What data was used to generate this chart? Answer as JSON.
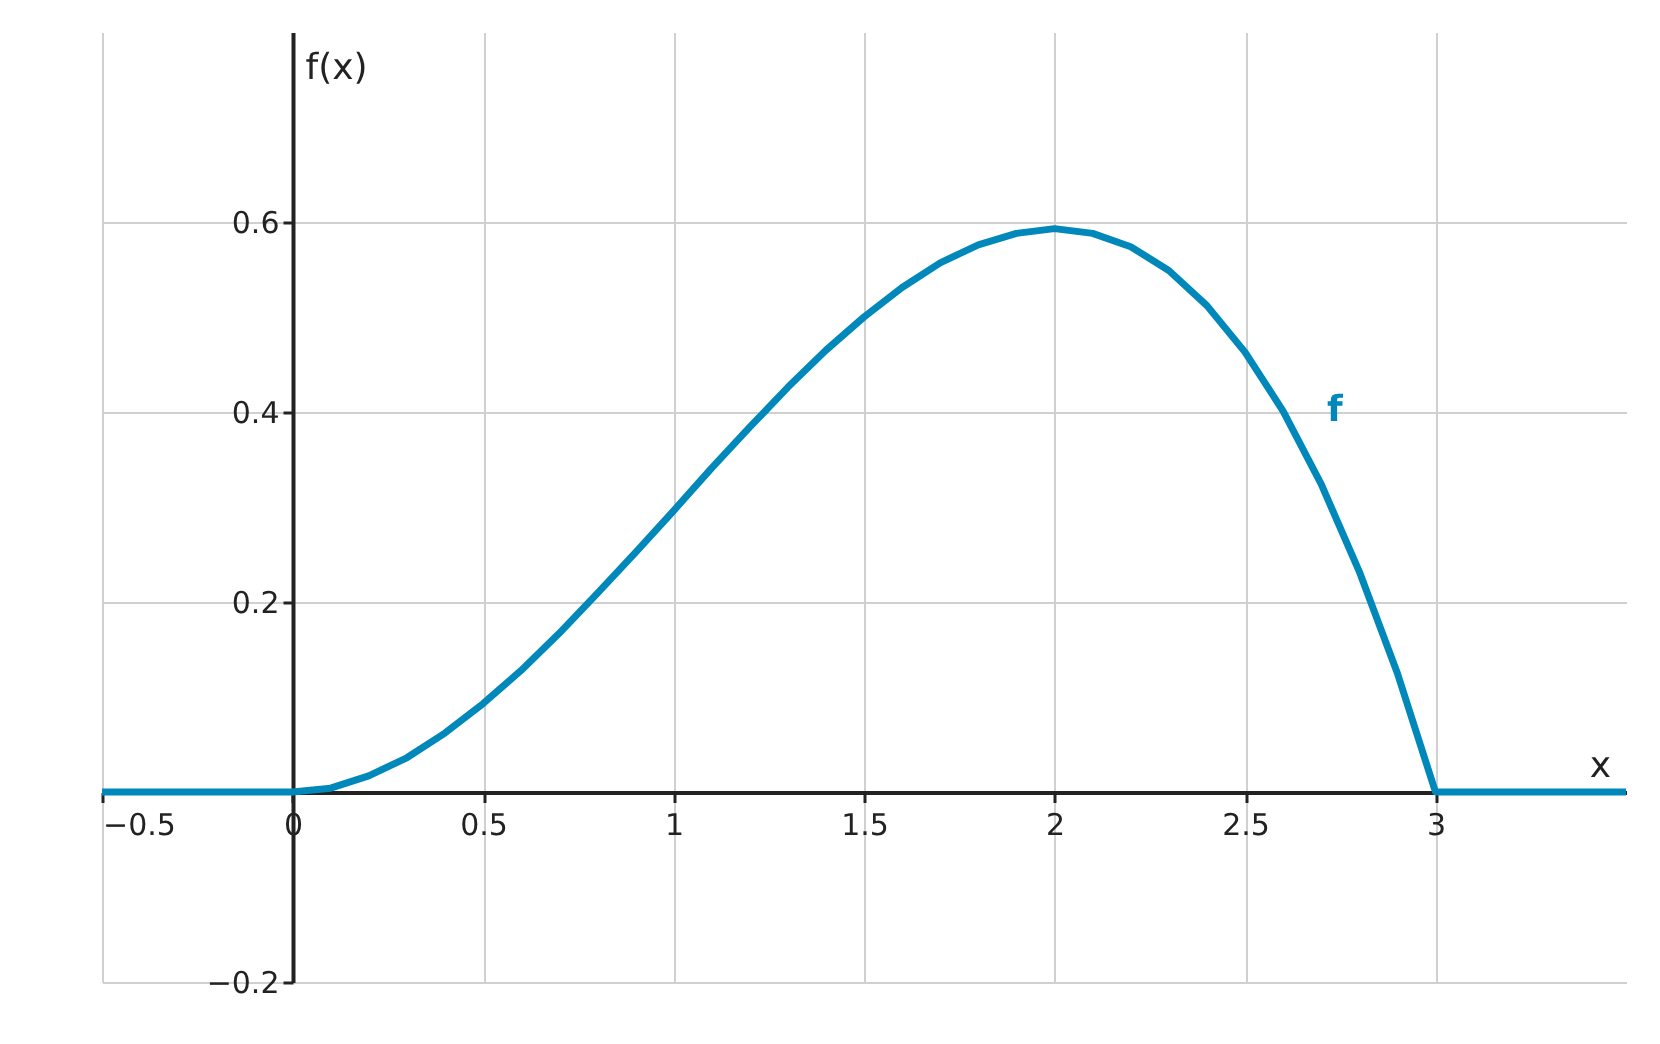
{
  "chart_data": {
    "type": "line",
    "xlabel": "x",
    "ylabel": "f(x)",
    "xlim": [
      -0.5,
      3.5
    ],
    "ylim": [
      -0.2,
      0.8
    ],
    "xticks": [
      -0.5,
      0,
      0.5,
      1,
      1.5,
      2,
      2.5,
      3
    ],
    "yticks": [
      -0.2,
      0.2,
      0.4,
      0.6
    ],
    "grid": true,
    "series": [
      {
        "name": "f",
        "color": "#0088bb",
        "x": [
          -0.5,
          0,
          0.1,
          0.2,
          0.3,
          0.4,
          0.5,
          0.6,
          0.7,
          0.8,
          0.9,
          1,
          1.1,
          1.2,
          1.3,
          1.4,
          1.5,
          1.6,
          1.7,
          1.8,
          1.9,
          2,
          2.1,
          2.2,
          2.3,
          2.4,
          2.5,
          2.6,
          2.7,
          2.8,
          2.9,
          3,
          3.5
        ],
        "values": [
          0,
          0,
          0.004,
          0.017,
          0.036,
          0.062,
          0.093,
          0.128,
          0.167,
          0.209,
          0.252,
          0.296,
          0.341,
          0.384,
          0.426,
          0.465,
          0.5,
          0.531,
          0.557,
          0.576,
          0.588,
          0.593,
          0.588,
          0.574,
          0.549,
          0.512,
          0.463,
          0.401,
          0.324,
          0.232,
          0.125,
          0,
          0
        ]
      }
    ]
  }
}
